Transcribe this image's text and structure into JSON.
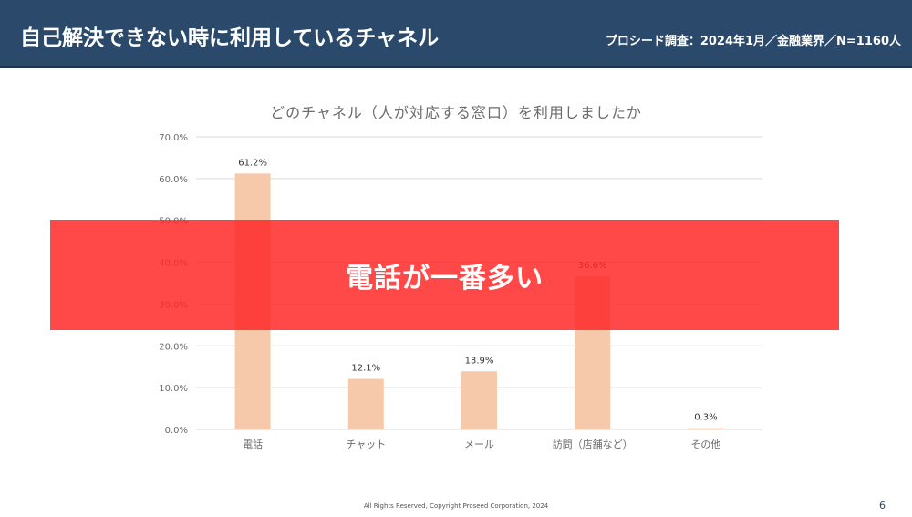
{
  "header": {
    "title": "自己解決できない時に利用しているチャネル",
    "survey_info": "プロシード調査：2024年1月／金融業界／N=1160人",
    "bg_color": "#2b4a6b"
  },
  "chart_data": {
    "type": "bar",
    "title": "どのチャネル（人が対応する窓口）を利用しましたか",
    "categories": [
      "電話",
      "チャット",
      "メール",
      "訪問（店舗など）",
      "その他"
    ],
    "values": [
      61.2,
      12.1,
      13.9,
      36.6,
      0.3
    ],
    "value_labels": [
      "61.2%",
      "12.1%",
      "13.9%",
      "36.6%",
      "0.3%"
    ],
    "y_ticks": [
      "0.0%",
      "10.0%",
      "20.0%",
      "30.0%",
      "40.0%",
      "50.0%",
      "60.0%",
      "70.0%"
    ],
    "ylim": [
      0,
      70
    ],
    "grid": true,
    "bar_color": "#f6c9ab",
    "grid_color": "#d9d9d9"
  },
  "overlay": {
    "text": "電話が一番多い",
    "color": "#ff2828"
  },
  "footer": {
    "copyright": "All Rights Reserved, Copyright Proseed Corporation, 2024",
    "page_number": "6"
  }
}
